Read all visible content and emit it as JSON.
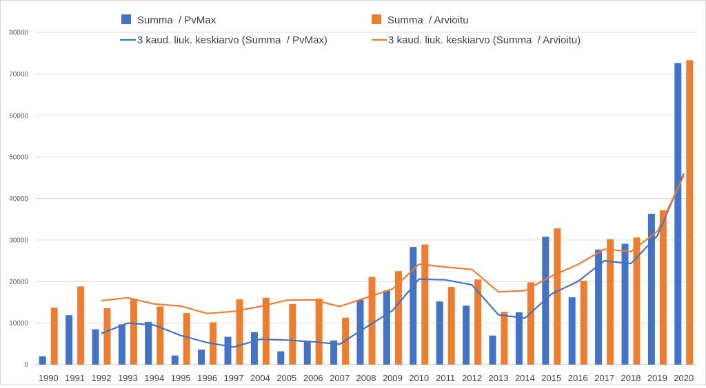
{
  "chart_data": {
    "type": "bar",
    "title": "",
    "xlabel": "",
    "ylabel": "",
    "ylim": [
      0,
      80000
    ],
    "y_ticks": [
      "0",
      "10000",
      "20000",
      "30000",
      "40000",
      "50000",
      "60000",
      "70000",
      "80000"
    ],
    "grid": true,
    "legend_position": "top",
    "categories": [
      "1990",
      "1991",
      "1992",
      "1993",
      "1994",
      "1995",
      "1996",
      "1997",
      "2004",
      "2005",
      "2006",
      "2007",
      "2008",
      "2009",
      "2010",
      "2011",
      "2012",
      "2013",
      "2014",
      "2015",
      "2016",
      "2017",
      "2018",
      "2019",
      "2020"
    ],
    "series": [
      {
        "name": "Summa  / PvMax",
        "kind": "bar",
        "color": "#4472C4",
        "values": [
          2000,
          11900,
          8500,
          9700,
          10300,
          2200,
          3600,
          6700,
          7800,
          3200,
          5600,
          5800,
          15600,
          17800,
          28300,
          15200,
          14200,
          7000,
          12600,
          30800,
          16200,
          27700,
          29100,
          36300,
          72600
        ]
      },
      {
        "name": "Summa  / Arvioitu",
        "kind": "bar",
        "color": "#ED7D31",
        "values": [
          13700,
          18800,
          13600,
          15700,
          14000,
          12400,
          10200,
          15700,
          16100,
          14600,
          15900,
          11300,
          21100,
          22500,
          28900,
          18700,
          20500,
          12700,
          19800,
          32800,
          20200,
          30200,
          30600,
          37200,
          73300
        ]
      },
      {
        "name": "3 kaud. liuk. keskiarvo (Summa  / PvMax)",
        "kind": "line",
        "color": "#4472C4",
        "values": [
          null,
          null,
          7500,
          10000,
          9500,
          7000,
          5300,
          4200,
          6100,
          5900,
          5500,
          4900,
          9000,
          13000,
          20600,
          20400,
          19200,
          12000,
          11200,
          17000,
          20000,
          25000,
          24300,
          31000,
          46000
        ]
      },
      {
        "name": "3 kaud. liuk. keskiarvo (Summa  / Arvioitu)",
        "kind": "line",
        "color": "#ED7D31",
        "values": [
          null,
          null,
          15400,
          16100,
          14600,
          14100,
          12300,
          12800,
          14000,
          15500,
          15600,
          14000,
          16100,
          18200,
          24200,
          23500,
          22900,
          17500,
          17800,
          21300,
          24100,
          27800,
          27200,
          32100,
          45500
        ]
      }
    ]
  }
}
